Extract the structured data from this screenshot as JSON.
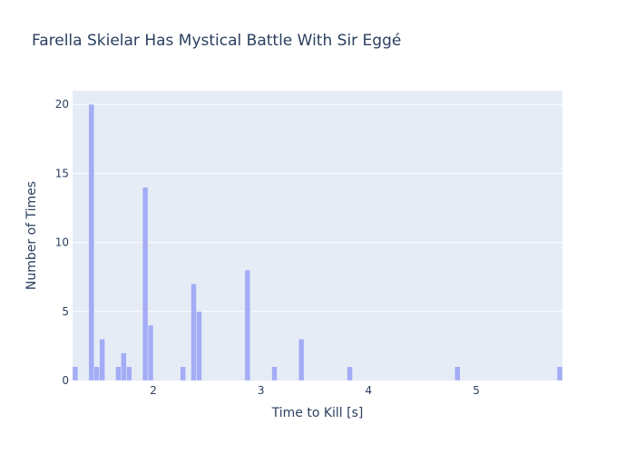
{
  "chart_data": {
    "type": "bar",
    "title": "Farella Skielar Has Mystical Battle With Sir Eggé",
    "xlabel": "Time to Kill [s]",
    "ylabel": "Number of Times",
    "xlim": [
      1.25,
      5.8
    ],
    "ylim": [
      0,
      21
    ],
    "bin_width": 0.05,
    "xticks": [
      2,
      3,
      4,
      5
    ],
    "yticks": [
      0,
      5,
      10,
      15,
      20
    ],
    "grid": true,
    "bar_color": "#a3acf5",
    "plot_bg": "#e5ecf6",
    "bins": [
      {
        "x": 1.25,
        "count": 1
      },
      {
        "x": 1.4,
        "count": 20
      },
      {
        "x": 1.45,
        "count": 1
      },
      {
        "x": 1.5,
        "count": 3
      },
      {
        "x": 1.65,
        "count": 1
      },
      {
        "x": 1.7,
        "count": 2
      },
      {
        "x": 1.75,
        "count": 1
      },
      {
        "x": 1.9,
        "count": 14
      },
      {
        "x": 1.95,
        "count": 4
      },
      {
        "x": 2.25,
        "count": 1
      },
      {
        "x": 2.35,
        "count": 7
      },
      {
        "x": 2.4,
        "count": 5
      },
      {
        "x": 2.85,
        "count": 8
      },
      {
        "x": 3.1,
        "count": 1
      },
      {
        "x": 3.35,
        "count": 3
      },
      {
        "x": 3.8,
        "count": 1
      },
      {
        "x": 4.8,
        "count": 1
      },
      {
        "x": 5.75,
        "count": 1
      }
    ]
  }
}
